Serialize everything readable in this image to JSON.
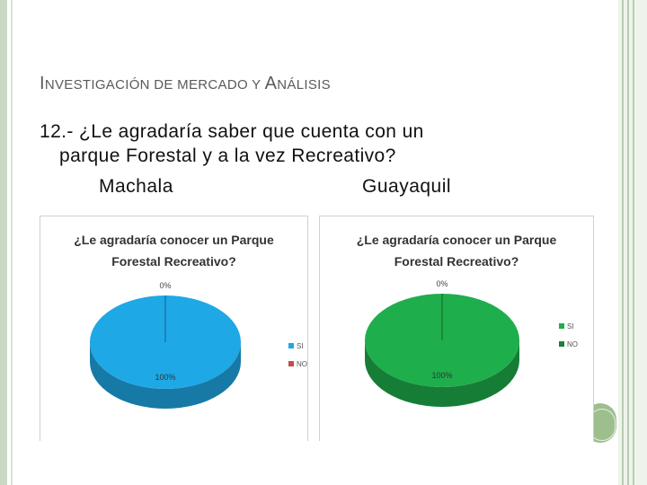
{
  "heading": {
    "cap1": "I",
    "rest1": "NVESTIGACIÓN",
    "rest2": " DE MERCADO Y ",
    "cap2": "A",
    "rest3": "NÁLISIS"
  },
  "question": {
    "line1": "12.- ¿Le agradaría saber que cuenta con un",
    "line2": "parque Forestal y a la vez Recreativo?"
  },
  "cities": {
    "a": "Machala",
    "b": "Guayaquil"
  },
  "chart_data": [
    {
      "type": "pie",
      "title_lines": [
        "¿Le agradaría conocer un Parque",
        "Forestal Recreativo?"
      ],
      "slices": [
        {
          "label": "SI",
          "value": 100,
          "value_label": "100%",
          "color": "#1ea8e6"
        },
        {
          "label": "NO",
          "value": 0,
          "value_label": "0%",
          "color": "#c0504d"
        }
      ],
      "legend": "right"
    },
    {
      "type": "pie",
      "title_lines": [
        "¿Le agradaría conocer un Parque",
        "Forestal Recreativo?"
      ],
      "slices": [
        {
          "label": "SI",
          "value": 100,
          "value_label": "100%",
          "color": "#1fae4c"
        },
        {
          "label": "NO",
          "value": 0,
          "value_label": "0%",
          "color": "#17823a"
        }
      ],
      "legend": "right"
    }
  ]
}
